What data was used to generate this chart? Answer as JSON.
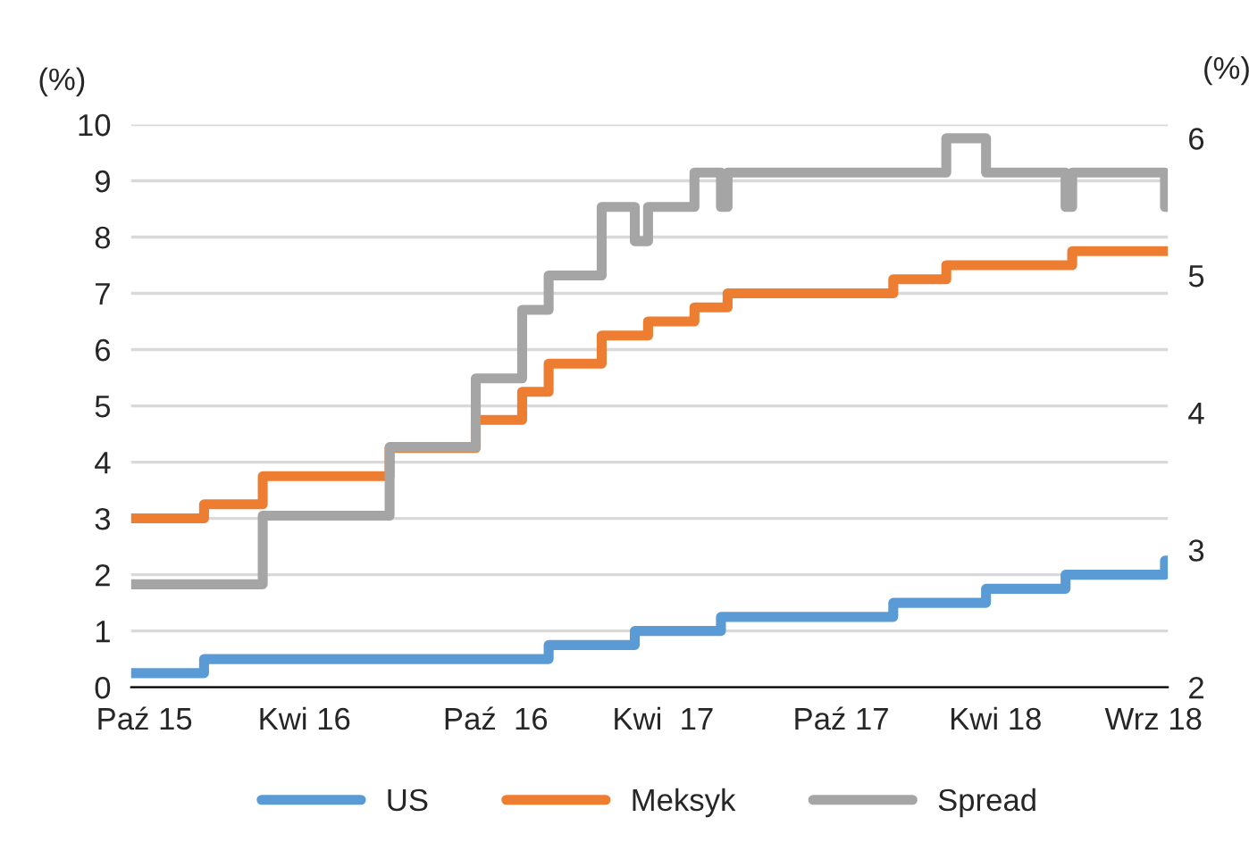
{
  "chart_data": {
    "type": "step",
    "ylabel": "(%)",
    "y2label": "(%)",
    "xlim": [
      "2015-10-01",
      "2018-09-30"
    ],
    "xticks": [
      {
        "value": "2015-10-15",
        "label": "Paź 15"
      },
      {
        "value": "2016-04-01",
        "label": "Kwi 16"
      },
      {
        "value": "2016-10-20",
        "label": "Paź  16"
      },
      {
        "value": "2017-04-15",
        "label": "Kwi  17"
      },
      {
        "value": "2017-10-20",
        "label": "Paź 17"
      },
      {
        "value": "2018-04-01",
        "label": "Kwi 18"
      },
      {
        "value": "2018-09-15",
        "label": "Wrz 18"
      }
    ],
    "ylim": [
      0,
      10
    ],
    "yticks": [
      0,
      1,
      2,
      3,
      4,
      5,
      6,
      7,
      8,
      9,
      10
    ],
    "y2lim": [
      2,
      6.1
    ],
    "y2ticks": [
      2,
      3,
      4,
      5,
      6
    ],
    "grid": "y",
    "legend": "bottom",
    "line_style": "solid",
    "marker": "none",
    "series": [
      {
        "name": "US",
        "color": "#5b9bd5",
        "x": [
          "2015-10-01",
          "2015-12-17",
          "2016-12-15",
          "2017-03-16",
          "2017-06-15",
          "2017-12-14",
          "2018-03-22",
          "2018-06-14",
          "2018-09-27",
          "2018-09-30"
        ],
        "values": [
          0.25,
          0.5,
          0.75,
          1.0,
          1.25,
          1.5,
          1.75,
          2.0,
          2.25,
          2.25
        ]
      },
      {
        "name": "Meksyk",
        "color": "#ed7d31",
        "x": [
          "2015-10-01",
          "2015-12-17",
          "2016-02-17",
          "2016-06-30",
          "2016-09-29",
          "2016-11-17",
          "2016-12-15",
          "2017-02-09",
          "2017-03-30",
          "2017-05-18",
          "2017-06-22",
          "2017-12-14",
          "2018-02-08",
          "2018-06-21",
          "2018-09-30"
        ],
        "values": [
          3.0,
          3.25,
          3.75,
          4.25,
          4.75,
          5.25,
          5.75,
          6.25,
          6.5,
          6.75,
          7.0,
          7.25,
          7.5,
          7.75,
          7.75
        ]
      },
      {
        "name": "Spread",
        "color": "#a5a5a5",
        "axis": "y2",
        "x": [
          "2015-10-01",
          "2016-02-17",
          "2016-06-30",
          "2016-09-29",
          "2016-11-17",
          "2016-12-15",
          "2017-02-09",
          "2017-03-16",
          "2017-03-30",
          "2017-05-18",
          "2017-06-15",
          "2017-06-22",
          "2018-02-08",
          "2018-03-22",
          "2018-06-14",
          "2018-06-21",
          "2018-09-27",
          "2018-09-30"
        ],
        "values": [
          2.75,
          3.25,
          3.75,
          4.25,
          4.75,
          5.0,
          5.5,
          5.25,
          5.5,
          5.75,
          5.5,
          5.75,
          6.0,
          5.75,
          5.5,
          5.75,
          5.5,
          5.5
        ]
      }
    ]
  }
}
